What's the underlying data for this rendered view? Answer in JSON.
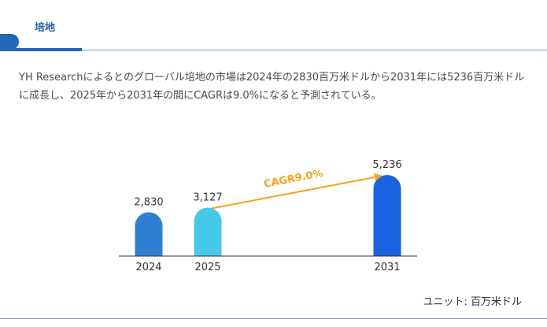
{
  "header": {
    "tab_title": "培地"
  },
  "description": "YH Researchによるとのグローバル培地の市場は2024年の2830百万米ドルから2031年には5236百万米ドルに成長し、2025年から2031年の間にCAGRは9.0%になると予測されている。",
  "chart_data": {
    "type": "bar",
    "categories": [
      "2024",
      "2025",
      "2031"
    ],
    "values": [
      2830,
      3127,
      5236
    ],
    "value_labels": [
      "2,830",
      "3,127",
      "5,236"
    ],
    "bar_colors": [
      "#2f7fd2",
      "#45c9e8",
      "#1a63e0"
    ],
    "annotation": {
      "text": "CAGR9.0%",
      "from": "2025",
      "to": "2031",
      "color": "#f5a31a"
    },
    "unit_label": "ユニット: 百万米ドル",
    "grid": false
  }
}
